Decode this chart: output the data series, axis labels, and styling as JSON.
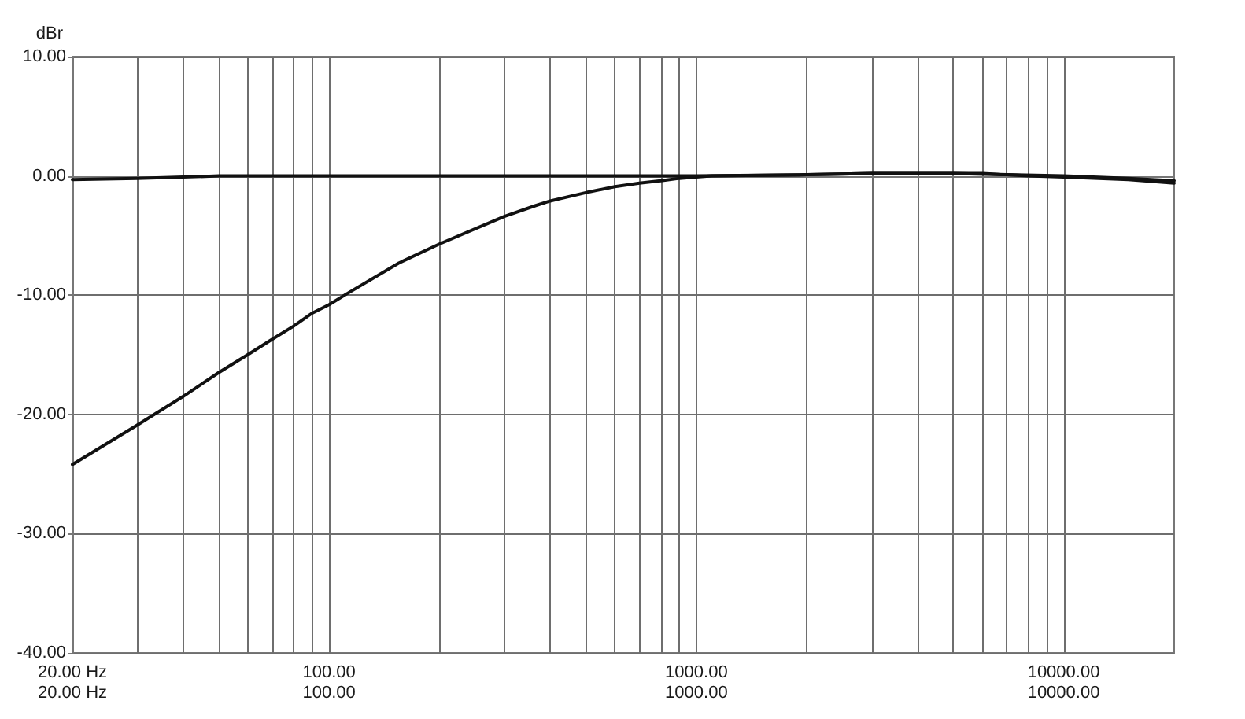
{
  "chart_data": {
    "type": "line",
    "ylabel": "dBr",
    "series": [
      {
        "color": "#111111",
        "x": [
          20,
          30,
          40,
          50,
          60,
          70,
          80,
          90,
          100,
          113,
          155,
          200,
          300,
          364,
          400,
          500,
          600,
          700,
          800,
          900,
          1000,
          1100,
          2000,
          3000,
          4000,
          5000,
          6000,
          7000,
          8000,
          10000,
          15000,
          20000
        ],
        "values": [
          -24.2,
          -20.9,
          -18.5,
          -16.5,
          -15.0,
          -13.7,
          -12.6,
          -11.5,
          -10.8,
          -9.8,
          -7.3,
          -5.7,
          -3.4,
          -2.5,
          -2.1,
          -1.4,
          -0.9,
          -0.6,
          -0.4,
          -0.2,
          -0.1,
          0,
          0.1,
          0.2,
          0.2,
          0.2,
          0.2,
          0.1,
          0,
          -0.1,
          -0.3,
          -0.6
        ]
      },
      {
        "color": "#111111",
        "x": [
          20,
          30,
          40,
          50,
          70,
          100,
          200,
          500,
          1000,
          2000,
          3000,
          5000,
          7000,
          10000,
          15000,
          20000
        ],
        "values": [
          -0.3,
          -0.2,
          -0.1,
          0,
          0,
          0,
          0,
          0,
          0,
          0.1,
          0.2,
          0.2,
          0.1,
          0,
          -0.2,
          -0.4
        ]
      }
    ],
    "log": "x",
    "xlim": [
      20,
      20000
    ],
    "xticks": [
      {
        "value": 20,
        "label": "20.00 Hz"
      },
      {
        "value": 30,
        "label": null
      },
      {
        "value": 40,
        "label": null
      },
      {
        "value": 50,
        "label": null
      },
      {
        "value": 60,
        "label": null
      },
      {
        "value": 70,
        "label": null
      },
      {
        "value": 80,
        "label": null
      },
      {
        "value": 90,
        "label": null
      },
      {
        "value": 100,
        "label": "100.00"
      },
      {
        "value": 200,
        "label": null
      },
      {
        "value": 300,
        "label": null
      },
      {
        "value": 400,
        "label": null
      },
      {
        "value": 500,
        "label": null
      },
      {
        "value": 600,
        "label": null
      },
      {
        "value": 700,
        "label": null
      },
      {
        "value": 800,
        "label": null
      },
      {
        "value": 900,
        "label": null
      },
      {
        "value": 1000,
        "label": "1000.00"
      },
      {
        "value": 2000,
        "label": null
      },
      {
        "value": 3000,
        "label": null
      },
      {
        "value": 4000,
        "label": null
      },
      {
        "value": 5000,
        "label": null
      },
      {
        "value": 6000,
        "label": null
      },
      {
        "value": 7000,
        "label": null
      },
      {
        "value": 8000,
        "label": null
      },
      {
        "value": 9000,
        "label": null
      },
      {
        "value": 10000,
        "label": "10000.00"
      }
    ],
    "annotations": [
      "20.00 Hz",
      "100.00",
      "1000.00",
      "10000.00"
    ],
    "ylim": [
      -40,
      10
    ],
    "yticks": [
      {
        "value": -40,
        "label": "-40.00"
      },
      {
        "value": -30,
        "label": "-30.00"
      },
      {
        "value": -20,
        "label": "-20.00"
      },
      {
        "value": -10,
        "label": "-10.00"
      },
      {
        "value": 0,
        "label": "0.00"
      },
      {
        "value": 10,
        "label": "10.00"
      }
    ],
    "grid": true,
    "marker": "none",
    "line_style": "solid"
  }
}
